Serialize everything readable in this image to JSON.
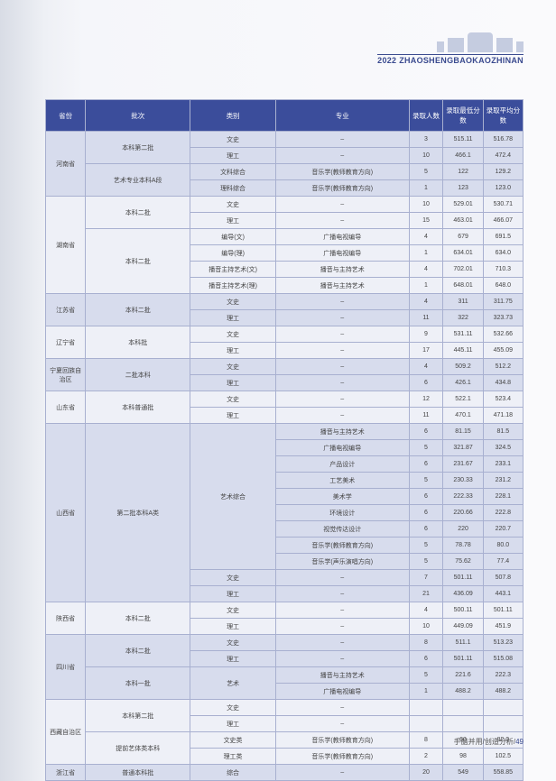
{
  "banner": {
    "year": "2022",
    "pinyin": "ZHAOSHENGBAOKAOZHINAN"
  },
  "columns": [
    "省份",
    "批次",
    "类别",
    "专业",
    "录取人数",
    "录取最低分数",
    "录取平均分数"
  ],
  "rows": [
    {
      "prov": "河南省",
      "provRs": 4,
      "bg": "a",
      "batch": "本科第二批",
      "batchRs": 2,
      "cat": "文史",
      "major": "–",
      "n1": "3",
      "n2": "515.11",
      "n3": "516.78"
    },
    {
      "bg": "a",
      "cat": "理工",
      "major": "–",
      "n1": "10",
      "n2": "466.1",
      "n3": "472.4"
    },
    {
      "bg": "a",
      "batch": "艺术专业本科A段",
      "batchRs": 2,
      "cat": "文科综合",
      "major": "音乐学(教师教育方向)",
      "n1": "5",
      "n2": "122",
      "n3": "129.2"
    },
    {
      "bg": "a",
      "cat": "理科综合",
      "major": "音乐学(教师教育方向)",
      "n1": "1",
      "n2": "123",
      "n3": "123.0"
    },
    {
      "prov": "湖南省",
      "provRs": 6,
      "bg": "b",
      "batch": "本科二批",
      "batchRs": 2,
      "cat": "文史",
      "major": "–",
      "n1": "10",
      "n2": "529.01",
      "n3": "530.71"
    },
    {
      "bg": "b",
      "cat": "理工",
      "major": "–",
      "n1": "15",
      "n2": "463.01",
      "n3": "466.07"
    },
    {
      "bg": "b",
      "batch": "本科二批",
      "batchRs": 4,
      "cat": "编导(文)",
      "major": "广播电视编导",
      "n1": "4",
      "n2": "679",
      "n3": "691.5"
    },
    {
      "bg": "b",
      "cat": "编导(理)",
      "major": "广播电视编导",
      "n1": "1",
      "n2": "634.01",
      "n3": "634.0"
    },
    {
      "bg": "b",
      "cat": "播音主持艺术(文)",
      "major": "播音与主持艺术",
      "n1": "4",
      "n2": "702.01",
      "n3": "710.3"
    },
    {
      "bg": "b",
      "cat": "播音主持艺术(理)",
      "major": "播音与主持艺术",
      "n1": "1",
      "n2": "648.01",
      "n3": "648.0"
    },
    {
      "prov": "江苏省",
      "provRs": 2,
      "bg": "a",
      "batch": "本科二批",
      "batchRs": 2,
      "cat": "文史",
      "major": "–",
      "n1": "4",
      "n2": "311",
      "n3": "311.75"
    },
    {
      "bg": "a",
      "cat": "理工",
      "major": "–",
      "n1": "11",
      "n2": "322",
      "n3": "323.73"
    },
    {
      "prov": "辽宁省",
      "provRs": 2,
      "bg": "b",
      "batch": "本科批",
      "batchRs": 2,
      "cat": "文史",
      "major": "–",
      "n1": "9",
      "n2": "531.11",
      "n3": "532.66"
    },
    {
      "bg": "b",
      "cat": "理工",
      "major": "–",
      "n1": "17",
      "n2": "445.11",
      "n3": "455.09"
    },
    {
      "prov": "宁夏回族自治区",
      "provRs": 2,
      "bg": "a",
      "batch": "二批本科",
      "batchRs": 2,
      "cat": "文史",
      "major": "–",
      "n1": "4",
      "n2": "509.2",
      "n3": "512.2"
    },
    {
      "bg": "a",
      "cat": "理工",
      "major": "–",
      "n1": "6",
      "n2": "426.1",
      "n3": "434.8"
    },
    {
      "prov": "山东省",
      "provRs": 2,
      "bg": "b",
      "batch": "本科普通批",
      "batchRs": 2,
      "cat": "文史",
      "major": "–",
      "n1": "12",
      "n2": "522.1",
      "n3": "523.4"
    },
    {
      "bg": "b",
      "cat": "理工",
      "major": "–",
      "n1": "11",
      "n2": "470.1",
      "n3": "471.18"
    },
    {
      "prov": "山西省",
      "provRs": 11,
      "bg": "a",
      "batch": "第二批本科A类",
      "batchRs": 11,
      "cat": "艺术综合",
      "catRs": 9,
      "major": "播音与主持艺术",
      "n1": "6",
      "n2": "81.15",
      "n3": "81.5"
    },
    {
      "bg": "a",
      "major": "广播电视编导",
      "n1": "5",
      "n2": "321.87",
      "n3": "324.5"
    },
    {
      "bg": "a",
      "major": "产品设计",
      "n1": "6",
      "n2": "231.67",
      "n3": "233.1"
    },
    {
      "bg": "a",
      "major": "工艺美术",
      "n1": "5",
      "n2": "230.33",
      "n3": "231.2"
    },
    {
      "bg": "a",
      "major": "美术学",
      "n1": "6",
      "n2": "222.33",
      "n3": "228.1"
    },
    {
      "bg": "a",
      "major": "环境设计",
      "n1": "6",
      "n2": "220.66",
      "n3": "222.8"
    },
    {
      "bg": "a",
      "major": "视觉传达设计",
      "n1": "6",
      "n2": "220",
      "n3": "220.7"
    },
    {
      "bg": "a",
      "major": "音乐学(教师教育方向)",
      "n1": "5",
      "n2": "78.78",
      "n3": "80.0"
    },
    {
      "bg": "a",
      "major": "音乐学(声乐演唱方向)",
      "n1": "5",
      "n2": "75.62",
      "n3": "77.4"
    },
    {
      "bg": "a",
      "cat": "文史",
      "major": "–",
      "n1": "7",
      "n2": "501.11",
      "n3": "507.8"
    },
    {
      "bg": "a",
      "cat": "理工",
      "major": "–",
      "n1": "21",
      "n2": "436.09",
      "n3": "443.1"
    },
    {
      "prov": "陕西省",
      "provRs": 2,
      "bg": "b",
      "batch": "本科二批",
      "batchRs": 2,
      "cat": "文史",
      "major": "–",
      "n1": "4",
      "n2": "500.11",
      "n3": "501.11"
    },
    {
      "bg": "b",
      "cat": "理工",
      "major": "–",
      "n1": "10",
      "n2": "449.09",
      "n3": "451.9"
    },
    {
      "prov": "四川省",
      "provRs": 4,
      "bg": "a",
      "batch": "本科二批",
      "batchRs": 2,
      "cat": "文史",
      "major": "–",
      "n1": "8",
      "n2": "511.1",
      "n3": "513.23"
    },
    {
      "bg": "a",
      "cat": "理工",
      "major": "–",
      "n1": "6",
      "n2": "501.11",
      "n3": "515.08"
    },
    {
      "bg": "a",
      "batch": "本科一批",
      "batchRs": 2,
      "cat": "艺术",
      "catRs": 2,
      "major": "播音与主持艺术",
      "n1": "5",
      "n2": "221.6",
      "n3": "222.3"
    },
    {
      "bg": "a",
      "major": "广播电视编导",
      "n1": "1",
      "n2": "488.2",
      "n3": "488.2"
    },
    {
      "prov": "西藏自治区",
      "provRs": 4,
      "bg": "b",
      "batch": "本科第二批",
      "batchRs": 2,
      "cat": "文史",
      "major": "–",
      "n1": "",
      "n2": "",
      "n3": ""
    },
    {
      "bg": "b",
      "cat": "理工",
      "major": "–",
      "n1": "",
      "n2": "",
      "n3": ""
    },
    {
      "bg": "b",
      "batch": "提前艺体类本科",
      "batchRs": 2,
      "cat": "文史类",
      "major": "音乐学(教师教育方向)",
      "n1": "8",
      "n2": "60",
      "n3": "82.0"
    },
    {
      "bg": "b",
      "cat": "理工类",
      "major": "音乐学(教师教育方向)",
      "n1": "2",
      "n2": "98",
      "n3": "102.5"
    },
    {
      "prov": "浙江省",
      "provRs": 1,
      "bg": "a",
      "batch": "普通本科批",
      "batchRs": 1,
      "cat": "综合",
      "major": "–",
      "n1": "20",
      "n2": "549",
      "n3": "558.85"
    }
  ],
  "footer": {
    "text": "手脑并用/创造分析/",
    "page": "49"
  }
}
